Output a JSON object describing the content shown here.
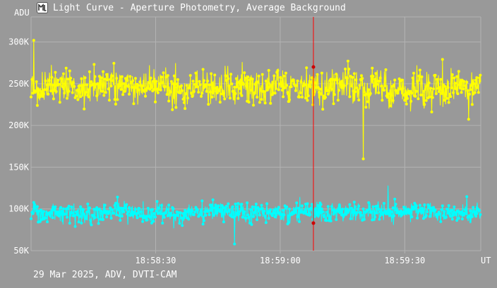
{
  "window": {
    "title": "Light Curve - Aperture Photometry, Average Background",
    "icon": "light-curve-app-icon"
  },
  "footer": {
    "caption": "29 Mar 2025, ADV, DVTI-CAM"
  },
  "colors": {
    "background": "#999999",
    "grid": "#b3b3b3",
    "text": "#ffffff",
    "cursor": "#ff0000",
    "cursor_marker": "#cc0000"
  },
  "chart_data": {
    "type": "line",
    "title": "Light Curve - Aperture Photometry, Average Background",
    "xlabel": "UT",
    "ylabel": "ADU",
    "grid": true,
    "x_ticks": [
      "18:58:30",
      "18:59:00",
      "18:59:30"
    ],
    "x_tick_seconds": [
      30,
      60,
      90
    ],
    "x_range_seconds": [
      0,
      108.3
    ],
    "y_ticks": [
      "50K",
      "100K",
      "150K",
      "200K",
      "250K",
      "300K"
    ],
    "y_tick_values": [
      50000,
      100000,
      150000,
      200000,
      250000,
      300000
    ],
    "ylim": [
      50000,
      330000
    ],
    "num_points": 1000,
    "cursor": {
      "time": "18:59:08.0",
      "x_seconds": 68
    },
    "series": [
      {
        "color": "#ffff00",
        "mean": 245000,
        "scatter": 17000,
        "min": 160000,
        "max": 302000,
        "value_at_cursor": 270000,
        "min_at_seconds": 80,
        "max_at_seconds": 0.6
      },
      {
        "color": "#00ffff",
        "mean": 96000,
        "scatter": 9000,
        "min": 58000,
        "max": 128000,
        "value_at_cursor": 83000,
        "min_at_seconds": 49,
        "max_at_seconds": 86
      }
    ]
  }
}
